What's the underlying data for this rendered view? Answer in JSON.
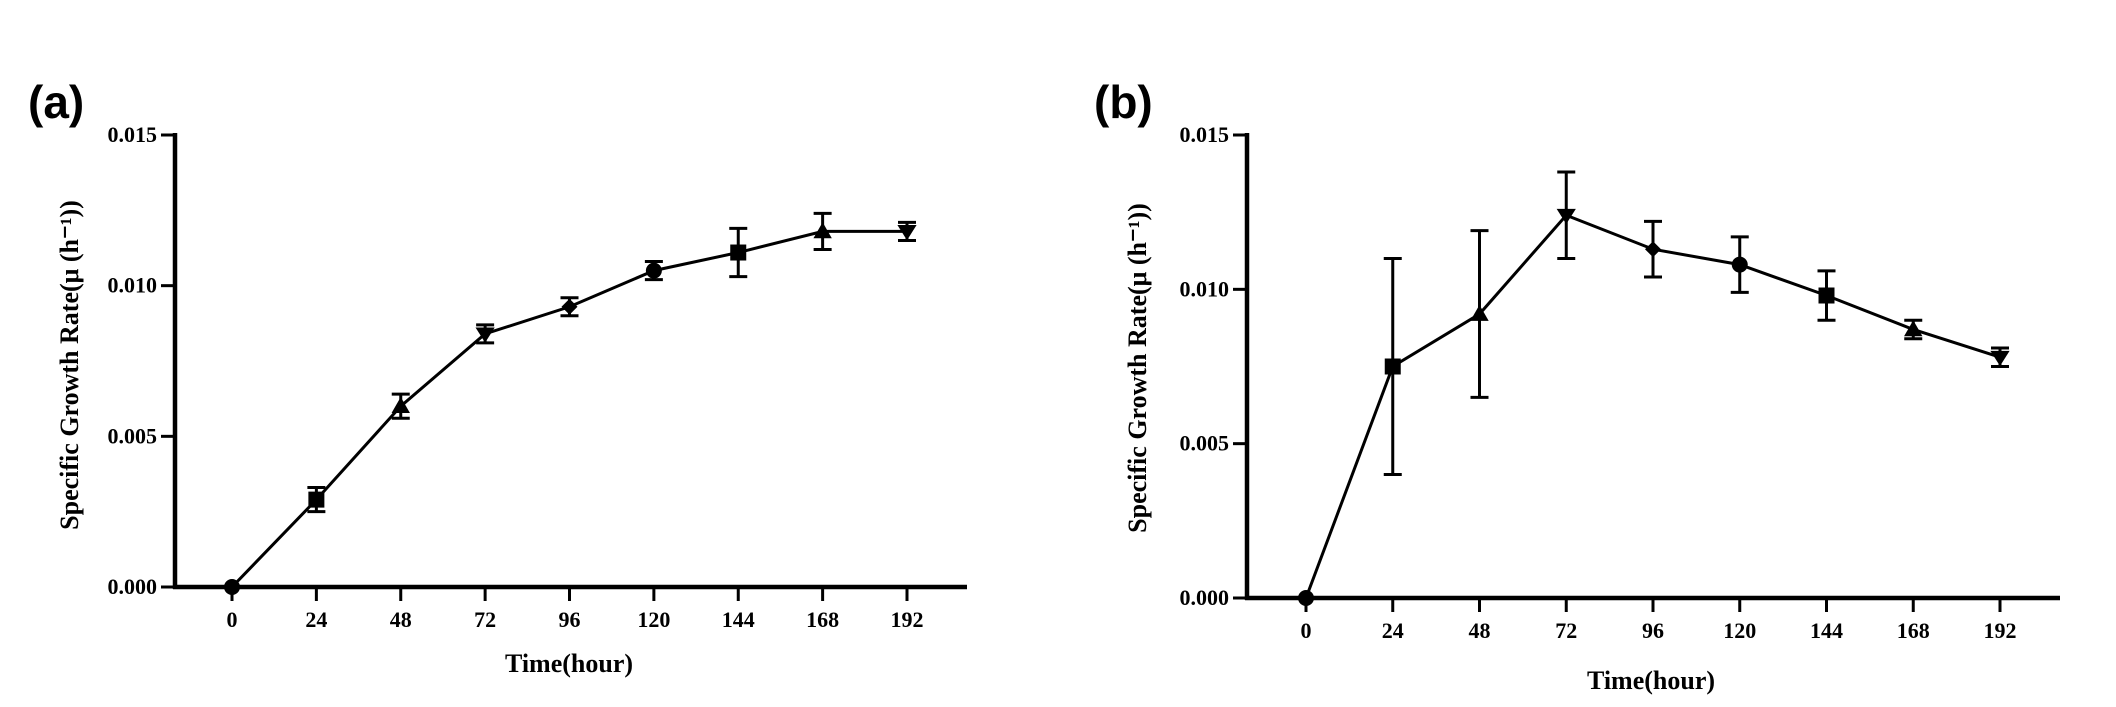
{
  "chart_data": [
    {
      "type": "line",
      "panel_label": "(a)",
      "xlabel": "Time(hour)",
      "ylabel": "Specific Growth Rate(μ (h⁻¹))",
      "x": [
        0,
        24,
        48,
        72,
        96,
        120,
        144,
        168,
        192
      ],
      "x_ticks": [
        "0",
        "24",
        "48",
        "72",
        "96",
        "120",
        "144",
        "168",
        "192"
      ],
      "y_ticks": [
        "0.000",
        "0.005",
        "0.010",
        "0.015"
      ],
      "ylim": [
        0,
        0.015
      ],
      "series": [
        {
          "name": "Specific Growth Rate",
          "values": [
            0.0,
            0.0029,
            0.006,
            0.0084,
            0.0093,
            0.0105,
            0.0111,
            0.0118,
            0.0118
          ],
          "errors": [
            0.0,
            0.0004,
            0.0004,
            0.0003,
            0.0003,
            0.0003,
            0.0008,
            0.0006,
            0.0003
          ],
          "markers": [
            "circle",
            "square",
            "triangle-up",
            "triangle-down",
            "diamond",
            "circle",
            "square",
            "triangle-up",
            "triangle-down"
          ]
        }
      ]
    },
    {
      "type": "line",
      "panel_label": "(b)",
      "xlabel": "Time(hour)",
      "ylabel": "Specific Growth Rate(μ (h⁻¹))",
      "x": [
        0,
        24,
        48,
        72,
        96,
        120,
        144,
        168,
        192
      ],
      "x_ticks": [
        "0",
        "24",
        "48",
        "72",
        "96",
        "120",
        "144",
        "168",
        "192"
      ],
      "y_ticks": [
        "0.000",
        "0.005",
        "0.010",
        "0.015"
      ],
      "ylim": [
        0,
        0.015
      ],
      "series": [
        {
          "name": "Specific Growth Rate",
          "values": [
            0.0,
            0.0075,
            0.0092,
            0.0124,
            0.0113,
            0.0108,
            0.0098,
            0.0087,
            0.0078
          ],
          "errors": [
            0.0,
            0.0035,
            0.0027,
            0.0014,
            0.0009,
            0.0009,
            0.0008,
            0.0003,
            0.0003
          ],
          "markers": [
            "circle",
            "square",
            "triangle-up",
            "triangle-down",
            "diamond",
            "circle",
            "square",
            "triangle-up",
            "triangle-down"
          ]
        }
      ]
    }
  ]
}
